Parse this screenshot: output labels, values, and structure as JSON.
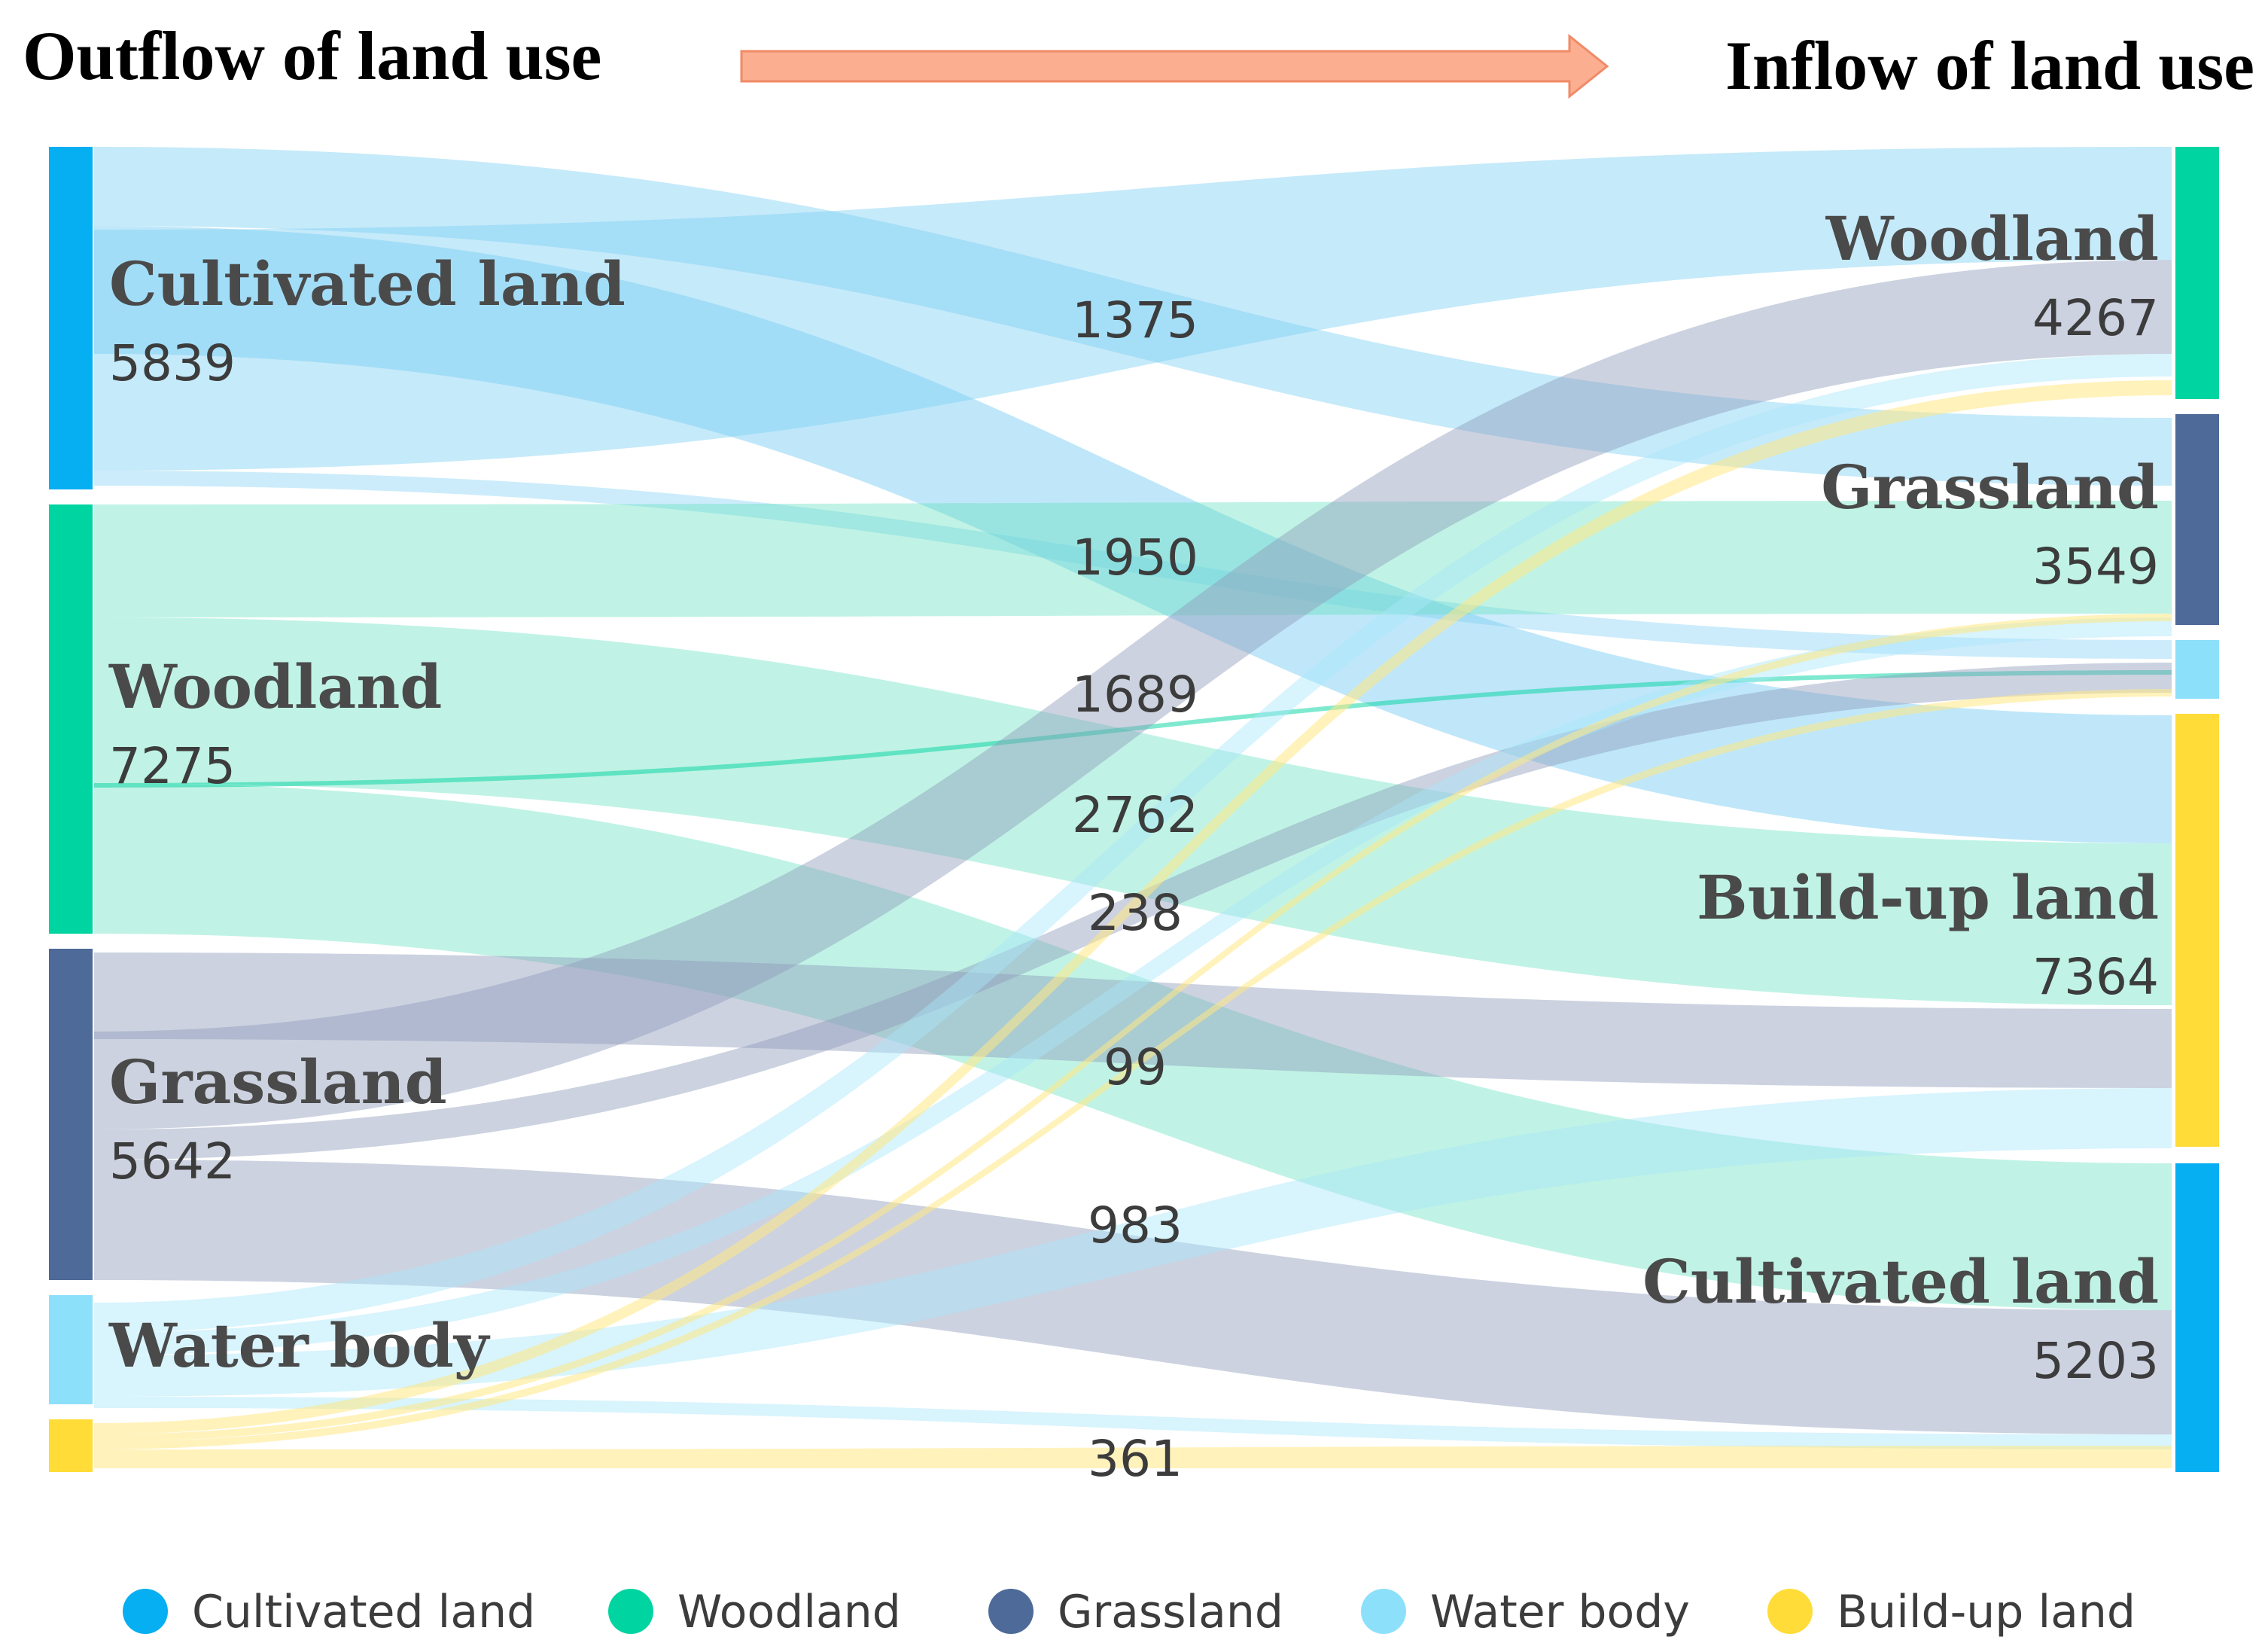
{
  "header": {
    "left_title": "Outflow of land use",
    "right_title": "Inflow of land use"
  },
  "colors": {
    "cultivated": "#06aef2",
    "woodland": "#00d4a0",
    "grassland": "#4d6a98",
    "water": "#8de0fa",
    "buildup": "#ffdc37",
    "arrow": "#fcae90"
  },
  "sources": {
    "cultivated": {
      "name": "Cultivated land",
      "value": "5839"
    },
    "woodland": {
      "name": "Woodland",
      "value": "7275"
    },
    "grassland": {
      "name": "Grassland",
      "value": "5642"
    },
    "water": {
      "name": "Water body",
      "value": ""
    },
    "buildup": {
      "name": "",
      "value": ""
    }
  },
  "targets": {
    "woodland": {
      "name": "Woodland",
      "value": "4267"
    },
    "grassland": {
      "name": "Grassland",
      "value": "3549"
    },
    "water": {
      "name": "",
      "value": ""
    },
    "buildup": {
      "name": "Build-up land",
      "value": "7364"
    },
    "cultivated": {
      "name": "Cultivated land",
      "value": "5203"
    }
  },
  "flow_labels": [
    "1375",
    "1950",
    "1689",
    "2762",
    "238",
    "99",
    "983",
    "361"
  ],
  "legend": [
    {
      "label": "Cultivated land",
      "icon": "circle-icon"
    },
    {
      "label": "Woodland",
      "icon": "circle-icon"
    },
    {
      "label": "Grassland",
      "icon": "circle-icon"
    },
    {
      "label": "Water body",
      "icon": "circle-icon"
    },
    {
      "label": "Build-up land",
      "icon": "circle-icon"
    }
  ]
}
